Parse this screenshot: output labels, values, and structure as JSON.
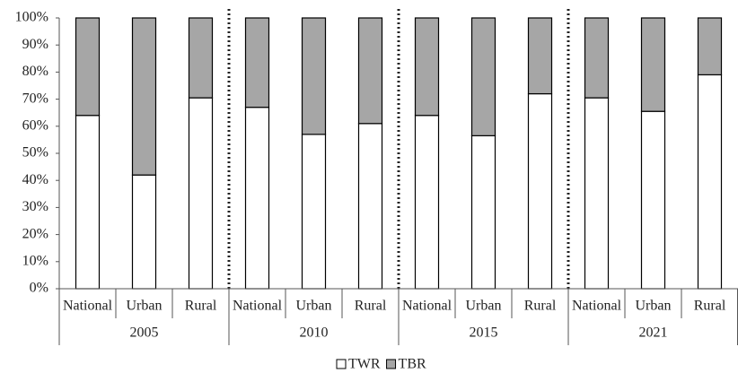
{
  "chart_data": {
    "type": "stacked-bar",
    "categories": [
      "National",
      "Urban",
      "Rural",
      "National",
      "Urban",
      "Rural",
      "National",
      "Urban",
      "Rural",
      "National",
      "Urban",
      "Rural"
    ],
    "groups": [
      "2005",
      "2010",
      "2015",
      "2021"
    ],
    "series": [
      {
        "name": "TWR",
        "color": "#ffffff",
        "values": [
          64,
          42,
          70.5,
          67,
          57,
          61,
          64,
          56.5,
          72,
          70.5,
          65.5,
          79
        ]
      },
      {
        "name": "TBR",
        "color": "#a6a6a6",
        "values": [
          36,
          58,
          29.5,
          33,
          43,
          39,
          36,
          43.5,
          28,
          29.5,
          34.5,
          21
        ]
      }
    ],
    "ylim": [
      0,
      100
    ],
    "yticks": [
      {
        "value": 0,
        "label": "0%"
      },
      {
        "value": 10,
        "label": "10%"
      },
      {
        "value": 20,
        "label": "20%"
      },
      {
        "value": 30,
        "label": "30%"
      },
      {
        "value": 40,
        "label": "40%"
      },
      {
        "value": 50,
        "label": "50%"
      },
      {
        "value": 60,
        "label": "60%"
      },
      {
        "value": 70,
        "label": "70%"
      },
      {
        "value": 80,
        "label": "80%"
      },
      {
        "value": 90,
        "label": "90%"
      },
      {
        "value": 100,
        "label": "100%"
      }
    ],
    "legend": "bottom"
  }
}
